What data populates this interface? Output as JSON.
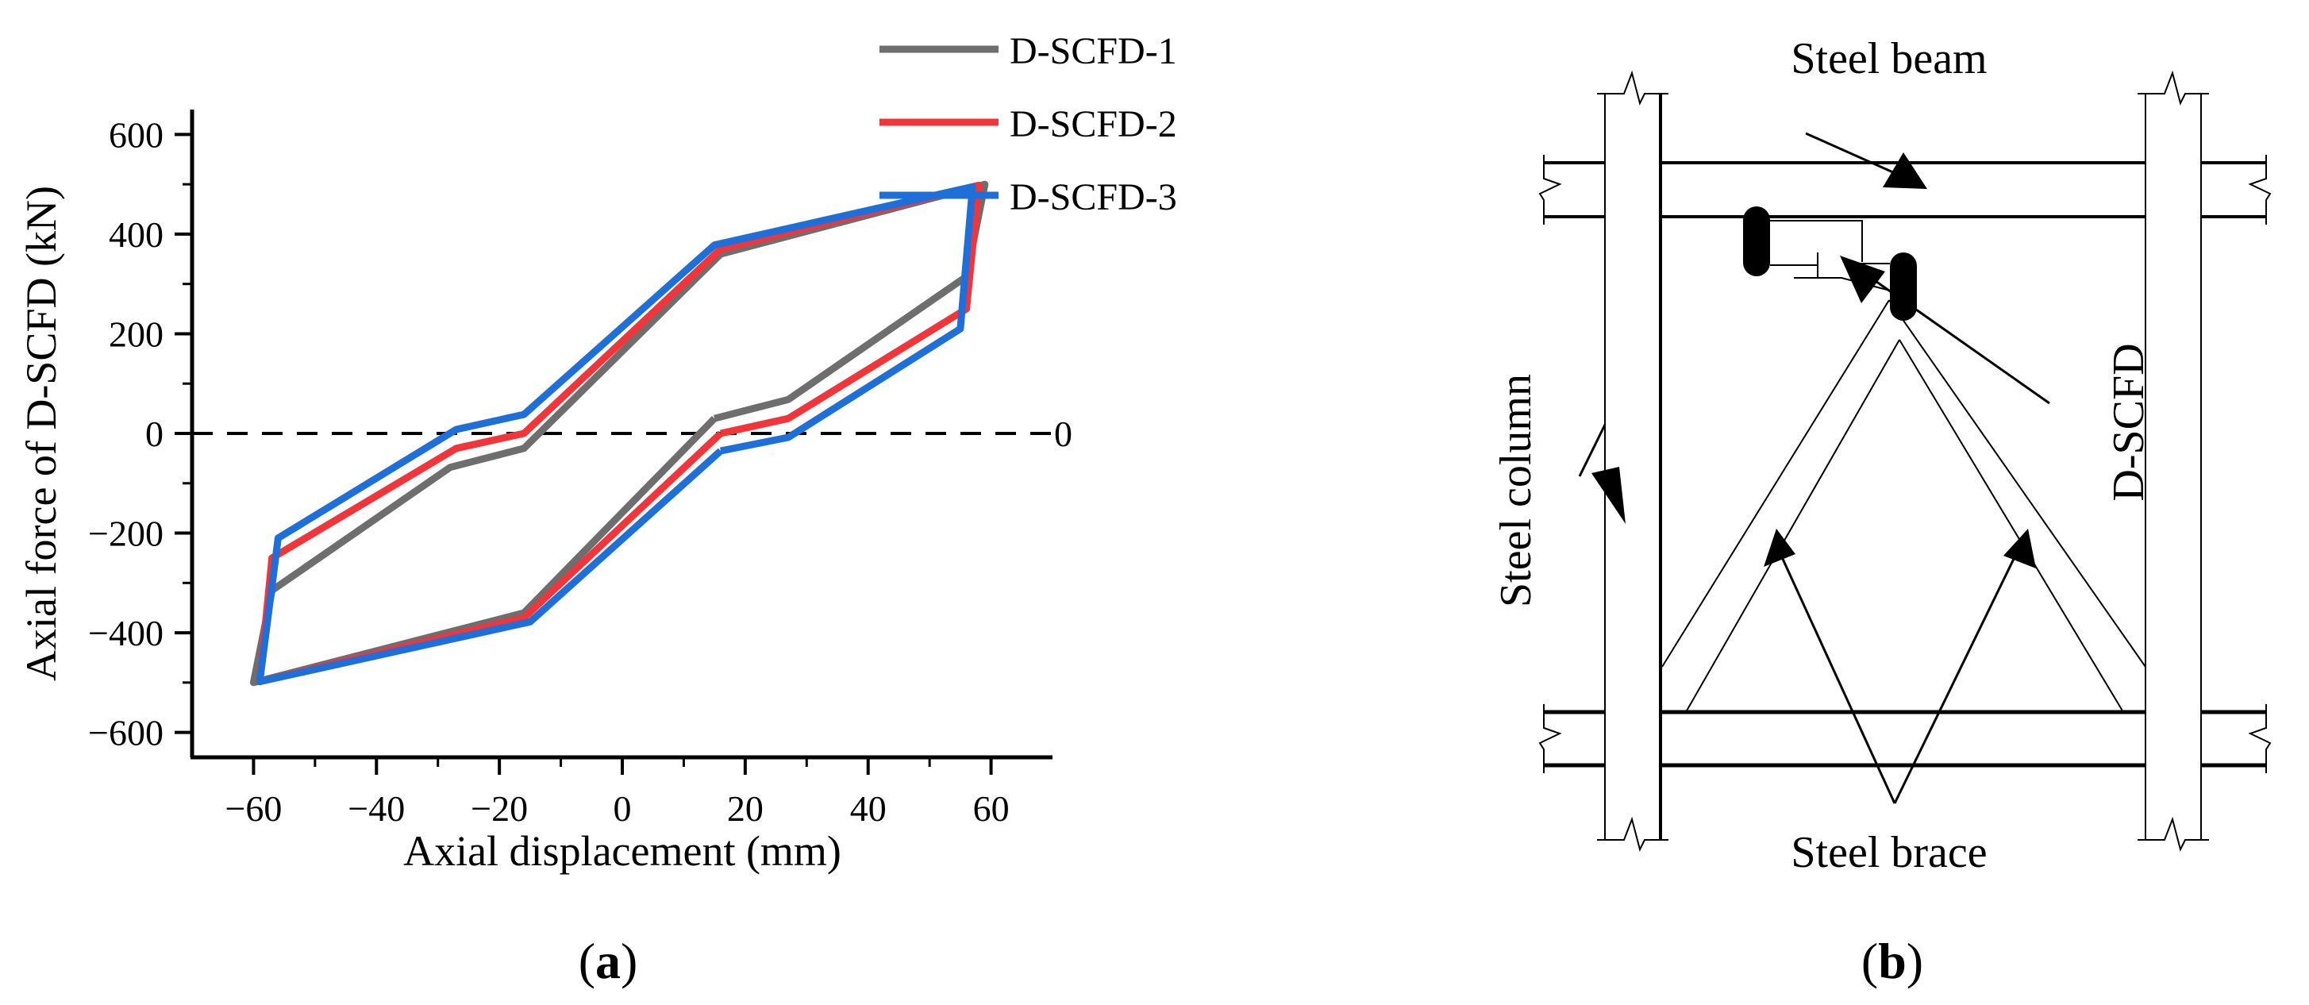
{
  "chart_data": {
    "type": "line",
    "panel_label": "a",
    "title": "",
    "xlabel": "Axial displacement (mm)",
    "ylabel": "Axial force of D-SCFD (kN)",
    "xlim": [
      -70,
      70
    ],
    "ylim": [
      -650,
      650
    ],
    "xticks": [
      -60,
      -40,
      -20,
      0,
      20,
      40,
      60
    ],
    "xtick_labels": [
      "−60",
      "−40",
      "−20",
      "0",
      "20",
      "40",
      "60"
    ],
    "yticks": [
      -600,
      -400,
      -200,
      0,
      200,
      400,
      600
    ],
    "ytick_labels": [
      "−600",
      "−400",
      "−200",
      "0",
      "200",
      "400",
      "600"
    ],
    "reference_line": {
      "y": 0,
      "style": "dashed",
      "label": "0"
    },
    "legend_position": "top-right",
    "series": [
      {
        "name": "D-SCFD-1",
        "color": "#6e6e6e",
        "points": [
          [
            15,
            30
          ],
          [
            27,
            68
          ],
          [
            56,
            315
          ],
          [
            59,
            500
          ],
          [
            16,
            360
          ],
          [
            -16,
            -30
          ],
          [
            -28,
            -68
          ],
          [
            -57,
            -315
          ],
          [
            -60,
            -500
          ],
          [
            -16,
            -360
          ],
          [
            15,
            30
          ]
        ]
      },
      {
        "name": "D-SCFD-2",
        "color": "#f0353b",
        "points": [
          [
            16,
            0
          ],
          [
            27,
            30
          ],
          [
            56,
            250
          ],
          [
            58,
            498
          ],
          [
            16,
            370
          ],
          [
            -16,
            0
          ],
          [
            -27,
            -30
          ],
          [
            -57,
            -250
          ],
          [
            -59,
            -498
          ],
          [
            -16,
            -370
          ],
          [
            16,
            0
          ]
        ]
      },
      {
        "name": "D-SCFD-3",
        "color": "#1f6fd9",
        "points": [
          [
            16,
            -35
          ],
          [
            27,
            -8
          ],
          [
            55,
            210
          ],
          [
            57,
            495
          ],
          [
            15,
            378
          ],
          [
            -16,
            38
          ],
          [
            -27,
            8
          ],
          [
            -56,
            -210
          ],
          [
            -59,
            -498
          ],
          [
            -15,
            -378
          ],
          [
            16,
            -35
          ]
        ]
      }
    ]
  },
  "diagram": {
    "panel_label": "b",
    "labels": {
      "steel_beam": "Steel beam",
      "steel_column": "Steel column",
      "d_scfd": "D-SCFD",
      "steel_brace": "Steel brace"
    }
  }
}
